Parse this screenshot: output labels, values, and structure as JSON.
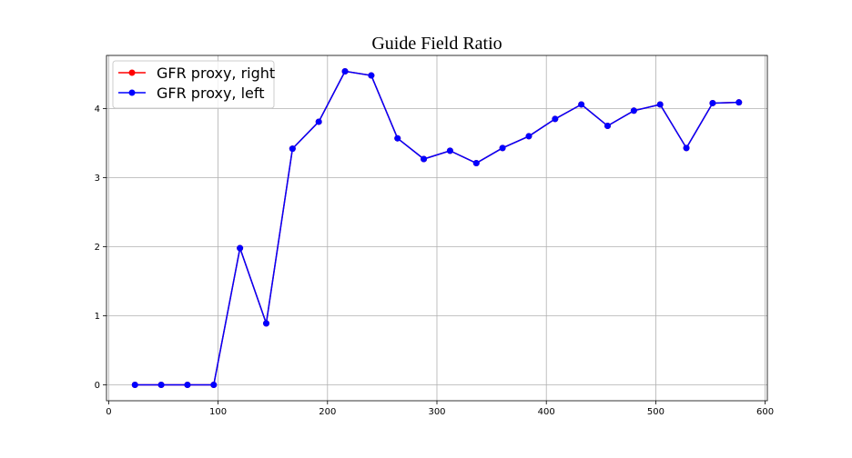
{
  "chart_data": {
    "type": "line",
    "title": "Guide Field Ratio",
    "xlabel": "",
    "ylabel": "",
    "xlim": [
      -2,
      602
    ],
    "ylim": [
      -0.23,
      4.77
    ],
    "xticks": [
      0,
      100,
      200,
      300,
      400,
      500,
      600
    ],
    "yticks": [
      0,
      1,
      2,
      3,
      4
    ],
    "grid": true,
    "legend_position": "upper-left",
    "x": [
      24,
      48,
      72,
      96,
      120,
      144,
      168,
      192,
      216,
      240,
      264,
      288,
      312,
      336,
      360,
      384,
      408,
      432,
      456,
      480,
      504,
      528,
      552,
      576
    ],
    "series": [
      {
        "name": "GFR proxy, right",
        "color": "#ff0000",
        "values": [
          0,
          0,
          0,
          0,
          1.98,
          0.89,
          3.42,
          3.81,
          4.54,
          4.48,
          3.57,
          3.27,
          3.39,
          3.21,
          3.43,
          3.6,
          3.85,
          4.06,
          3.75,
          3.97,
          4.06,
          3.43,
          4.08,
          4.09
        ]
      },
      {
        "name": "GFR proxy, left",
        "color": "#0000ff",
        "values": [
          0,
          0,
          0,
          0,
          1.98,
          0.89,
          3.42,
          3.81,
          4.54,
          4.48,
          3.57,
          3.27,
          3.39,
          3.21,
          3.43,
          3.6,
          3.85,
          4.06,
          3.75,
          3.97,
          4.06,
          3.43,
          4.08,
          4.09
        ]
      }
    ]
  }
}
